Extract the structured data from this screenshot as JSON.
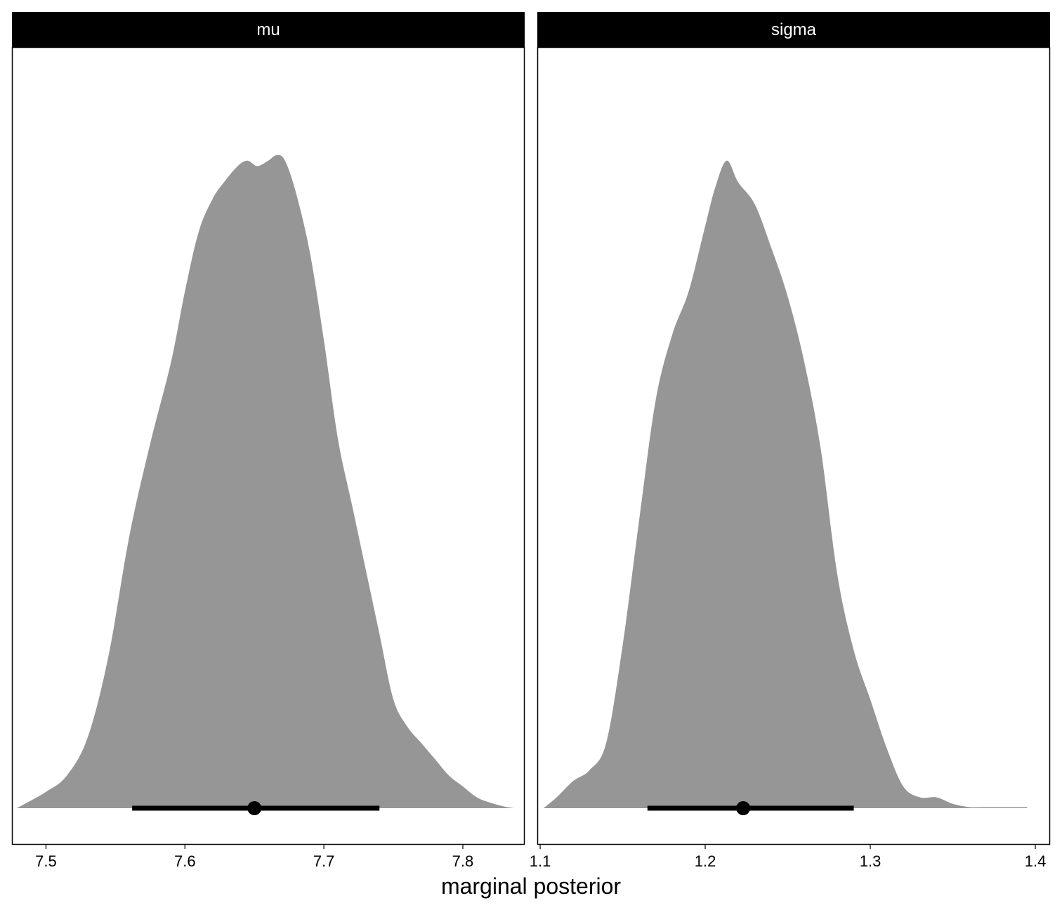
{
  "chart_data": {
    "type": "area",
    "chart_kind": "half-eye density (marginal posterior) with point interval",
    "xlabel": "marginal posterior",
    "colors": {
      "density_fill": "#969696",
      "interval": "#000000",
      "strip_bg": "#000000",
      "strip_text": "#ffffff"
    },
    "grid": false,
    "facets": [
      {
        "label": "mu",
        "xlim": [
          7.476,
          7.844
        ],
        "ticks": [
          "7.5",
          "7.6",
          "7.7",
          "7.8"
        ],
        "tick_values": [
          7.5,
          7.6,
          7.7,
          7.8
        ],
        "density": {
          "x": [
            7.479,
            7.5,
            7.515,
            7.53,
            7.545,
            7.56,
            7.575,
            7.59,
            7.6,
            7.61,
            7.62,
            7.628,
            7.638,
            7.645,
            7.652,
            7.66,
            7.666,
            7.672,
            7.68,
            7.69,
            7.7,
            7.71,
            7.72,
            7.73,
            7.74,
            7.75,
            7.76,
            7.77,
            7.78,
            7.79,
            7.8,
            7.81,
            7.82,
            7.83,
            7.837
          ],
          "y": [
            0.0,
            0.03,
            0.06,
            0.13,
            0.28,
            0.5,
            0.67,
            0.82,
            0.95,
            1.06,
            1.12,
            1.15,
            1.18,
            1.19,
            1.18,
            1.19,
            1.2,
            1.19,
            1.13,
            1.02,
            0.86,
            0.68,
            0.56,
            0.44,
            0.32,
            0.2,
            0.15,
            0.12,
            0.09,
            0.06,
            0.04,
            0.02,
            0.01,
            0.003,
            0.0
          ],
          "peak_normalized_to": 1.2
        },
        "point": 7.65,
        "interval": [
          7.562,
          7.74
        ]
      },
      {
        "label": "sigma",
        "xlim": [
          1.0987,
          1.4085
        ],
        "ticks": [
          "1.1",
          "1.2",
          "1.3",
          "1.4"
        ],
        "tick_values": [
          1.1,
          1.2,
          1.3,
          1.4
        ],
        "density": {
          "x": [
            1.102,
            1.11,
            1.12,
            1.13,
            1.14,
            1.15,
            1.16,
            1.17,
            1.18,
            1.19,
            1.2,
            1.206,
            1.213,
            1.22,
            1.23,
            1.24,
            1.25,
            1.26,
            1.27,
            1.28,
            1.29,
            1.3,
            1.31,
            1.32,
            1.33,
            1.34,
            1.35,
            1.36,
            1.37,
            1.38,
            1.395
          ],
          "y": [
            0.0,
            0.02,
            0.05,
            0.07,
            0.12,
            0.3,
            0.53,
            0.75,
            0.87,
            0.95,
            1.07,
            1.14,
            1.19,
            1.15,
            1.11,
            1.03,
            0.94,
            0.82,
            0.66,
            0.43,
            0.29,
            0.2,
            0.11,
            0.04,
            0.02,
            0.02,
            0.008,
            0.002,
            0.002,
            0.002,
            0.002
          ],
          "peak_normalized_to": 1.2
        },
        "point": 1.223,
        "interval": [
          1.165,
          1.29
        ]
      }
    ]
  }
}
